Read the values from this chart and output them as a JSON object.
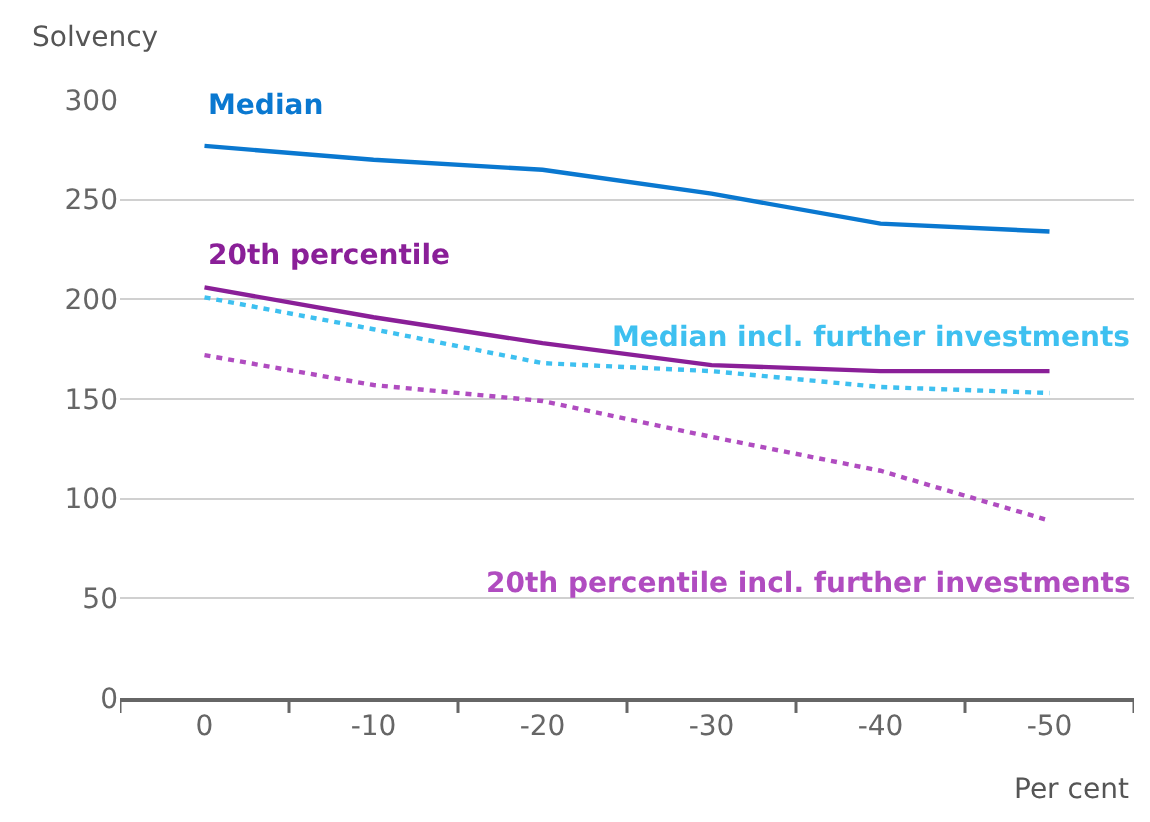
{
  "chart_data": {
    "type": "line",
    "ylabel": "Solvency",
    "xlabel": "Per cent",
    "categories": [
      "0",
      "-10",
      "-20",
      "-30",
      "-40",
      "-50"
    ],
    "ylim": [
      0,
      300
    ],
    "yticks": [
      0,
      50,
      100,
      150,
      200,
      250,
      300
    ],
    "grid": "y",
    "legend": false,
    "marker": "none",
    "series": [
      {
        "name": "Median",
        "color": "#0a78d0",
        "line_style": "solid",
        "values": [
          277,
          270,
          265,
          253,
          238,
          234
        ]
      },
      {
        "name": "20th percentile",
        "color": "#8a1f98",
        "line_style": "solid",
        "values": [
          206,
          191,
          178,
          167,
          164,
          164
        ]
      },
      {
        "name": "Median incl. further investments",
        "color": "#3ec0f0",
        "line_style": "dotted",
        "values": [
          201,
          185,
          168,
          164,
          156,
          153
        ]
      },
      {
        "name": "20th percentile incl. further investments",
        "color": "#b04cc0",
        "line_style": "dotted",
        "values": [
          172,
          157,
          149,
          131,
          114,
          89
        ]
      }
    ]
  }
}
